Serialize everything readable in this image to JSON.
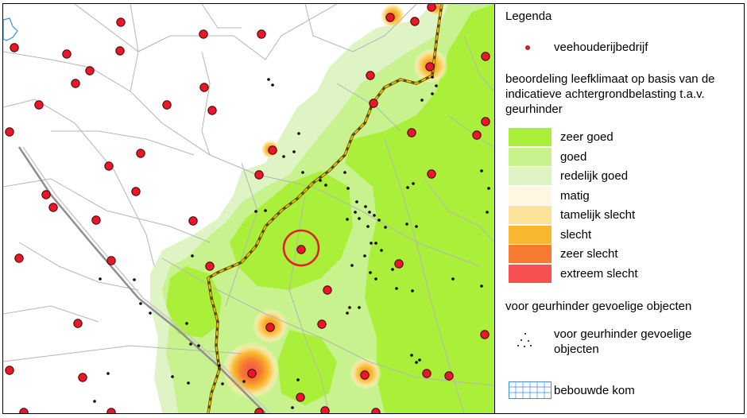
{
  "legend": {
    "title": "Legenda",
    "farm_label": "veehouderijbedrijf",
    "rating_heading": "beoordeling leefklimaat op basis van de indicatieve achtergrondbelasting t.a.v. geurhinder",
    "classes": [
      {
        "label": "zeer goed",
        "color": "#aaf03a"
      },
      {
        "label": "goed",
        "color": "#c7f28e"
      },
      {
        "label": "redelijk goed",
        "color": "#dff4c4"
      },
      {
        "label": "matig",
        "color": "#fff7e0"
      },
      {
        "label": "tamelijk slecht",
        "color": "#fbe49a"
      },
      {
        "label": "slecht",
        "color": "#f7b72e"
      },
      {
        "label": "zeer slecht",
        "color": "#f77a30"
      },
      {
        "label": "extreem slecht",
        "color": "#f65050"
      }
    ],
    "sensitive_heading": "voor geurhinder gevoelige objecten",
    "sensitive_label": "voor geurhinder gevoelige objecten",
    "built_area_label": "bebouwde kom"
  },
  "map": {
    "farm_color": "#e8182a",
    "highlight_color": "#e02020",
    "boundary_color": "#e0b400",
    "road_color": "#a8a8a8"
  }
}
